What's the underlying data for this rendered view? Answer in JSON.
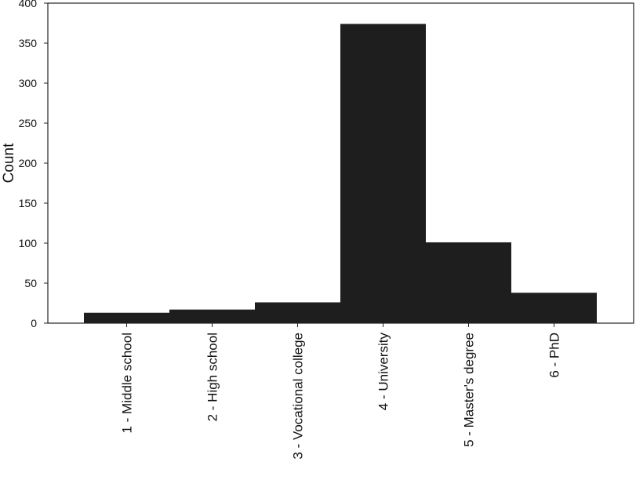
{
  "chart_data": {
    "type": "bar",
    "categories": [
      "1 - Middle school",
      "2 - High school",
      "3 - Vocational college",
      "4 - University",
      "5 - Master's degree",
      "6 - PhD"
    ],
    "values": [
      13,
      17,
      26,
      374,
      101,
      38
    ],
    "title": "",
    "xlabel": "",
    "ylabel": "Count",
    "ylim": [
      0,
      400
    ],
    "yticks": [
      0,
      50,
      100,
      150,
      200,
      250,
      300,
      350,
      400
    ],
    "grid": false,
    "bar_color": "#1e1e1e"
  }
}
